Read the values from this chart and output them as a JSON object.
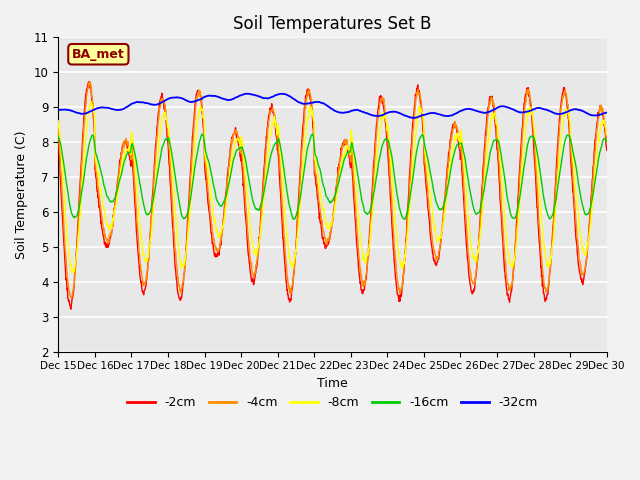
{
  "title": "Soil Temperatures Set B",
  "xlabel": "Time",
  "ylabel": "Soil Temperature (C)",
  "ylim": [
    2.0,
    11.0
  ],
  "yticks": [
    2.0,
    3.0,
    4.0,
    5.0,
    6.0,
    7.0,
    8.0,
    9.0,
    10.0,
    11.0
  ],
  "xtick_labels": [
    "Dec 15",
    "Dec 16",
    "Dec 17",
    "Dec 18",
    "Dec 19",
    "Dec 20",
    "Dec 21",
    "Dec 22",
    "Dec 23",
    "Dec 24",
    "Dec 25",
    "Dec 26",
    "Dec 27",
    "Dec 28",
    "Dec 29",
    "Dec 30"
  ],
  "label_box_text": "BA_met",
  "label_box_facecolor": "#FFFF99",
  "label_box_edgecolor": "#8B0000",
  "label_box_textcolor": "#8B0000",
  "series_colors": [
    "#FF0000",
    "#FF8C00",
    "#FFFF00",
    "#00CC00",
    "#0000FF"
  ],
  "series_labels": [
    "-2cm",
    "-4cm",
    "-8cm",
    "-16cm",
    "-32cm"
  ],
  "plot_bg_color": "#E8E8E8",
  "fig_bg_color": "#F2F2F2",
  "grid_color": "#FFFFFF",
  "n_points": 1440,
  "days": 15
}
